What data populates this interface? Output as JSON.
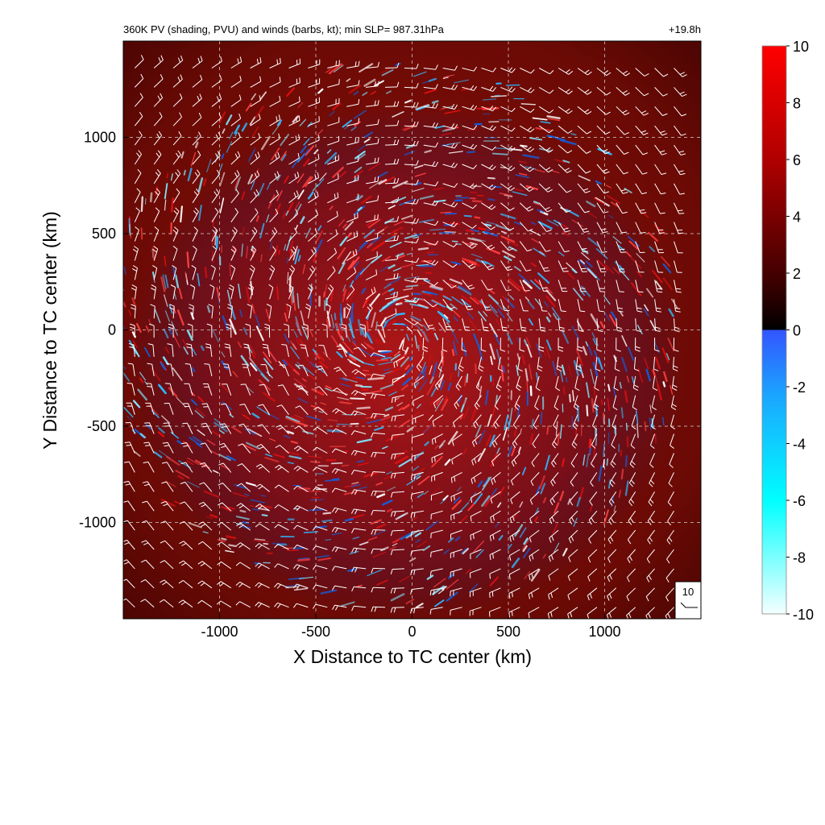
{
  "chart_data": {
    "type": "heatmap",
    "title": "360K PV (shading, PVU) and winds (barbs, kt); min SLP= 987.31hPa",
    "time_label": "+19.8h",
    "xlabel": "X Distance to TC center (km)",
    "ylabel": "Y Distance to TC center (km)",
    "xlim": [
      -1500,
      1500
    ],
    "ylim": [
      -1500,
      1500
    ],
    "x_ticks": [
      -1000,
      -500,
      0,
      500,
      1000
    ],
    "y_ticks": [
      -1000,
      -500,
      0,
      500,
      1000
    ],
    "x_tick_labels": [
      "-1000",
      "-500",
      "0",
      "500",
      "1000"
    ],
    "y_tick_labels": [
      "-1000",
      "-500",
      "0",
      "500",
      "1000"
    ],
    "grid": true,
    "grid_style": "dashed",
    "colorbar": {
      "range": [
        -10,
        10
      ],
      "ticks": [
        10,
        8,
        6,
        4,
        2,
        0,
        -2,
        -4,
        -6,
        -8,
        -10
      ],
      "tick_labels": [
        "10",
        "8",
        "6",
        "4",
        "2",
        "0",
        "-2",
        "-4",
        "-6",
        "-8",
        "-10"
      ],
      "colors": {
        "max": "#ff0000",
        "mid_positive": "#7a0000",
        "zero_positive": "#000000",
        "zero_negative": "#3355ff",
        "mid_negative": "#00ffff",
        "min": "#f5ffff"
      }
    },
    "reference_barb": {
      "label": "10",
      "speed_kt": 10
    },
    "circulation": "cyclonic",
    "colors": {
      "background_field": "#6b0a05",
      "positive_streak": "#e01010",
      "negative_streak": "#2fb8ff",
      "barb": "#ffffff"
    }
  }
}
